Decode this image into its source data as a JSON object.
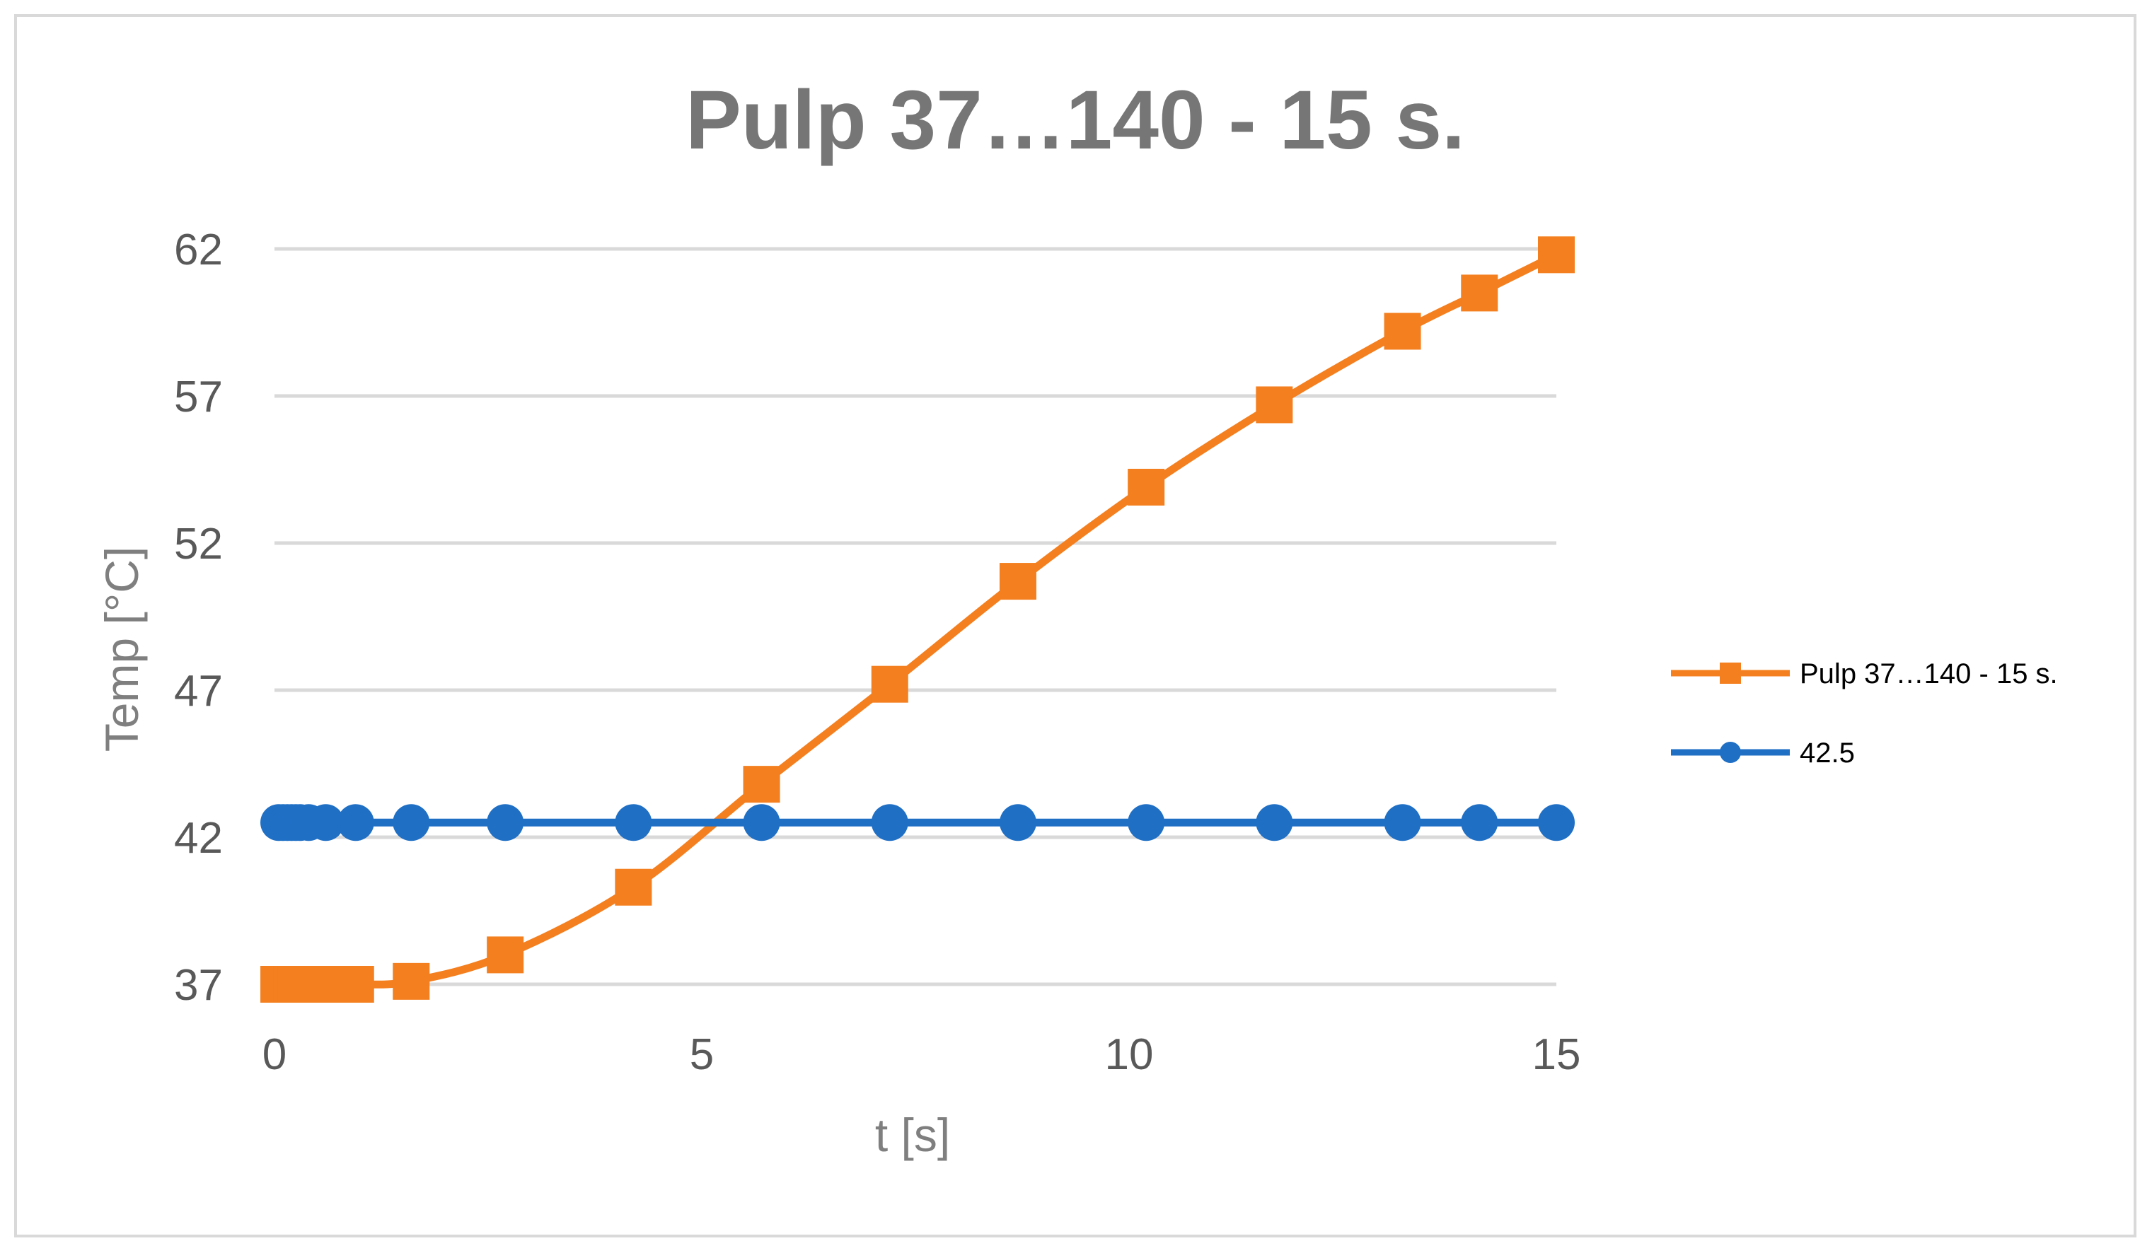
{
  "chart_data": {
    "type": "line",
    "title": "Pulp 37…140 - 15 s.",
    "xlabel": "t [s]",
    "ylabel": "Temp [°C]",
    "xlim": [
      0,
      15
    ],
    "ylim": [
      37,
      62
    ],
    "xticks": [
      0,
      5,
      10,
      15
    ],
    "yticks": [
      37,
      42,
      47,
      52,
      57,
      62
    ],
    "grid": "horizontal",
    "legend_position": "right",
    "series": [
      {
        "name": "Pulp 37…140 - 15 s.",
        "color": "#F47F1F",
        "marker": "square",
        "x": [
          0.05,
          0.1,
          0.15,
          0.2,
          0.25,
          0.3,
          0.4,
          0.6,
          0.95,
          1.6,
          2.7,
          4.2,
          5.7,
          7.2,
          8.7,
          10.2,
          11.7,
          13.2,
          14.1,
          15.0
        ],
        "y": [
          37.0,
          37.0,
          37.0,
          37.0,
          37.0,
          37.0,
          37.0,
          37.0,
          37.0,
          37.1,
          38.0,
          40.3,
          43.8,
          47.2,
          50.7,
          53.9,
          56.7,
          59.2,
          60.5,
          61.8
        ]
      },
      {
        "name": "42.5",
        "color": "#1F6FC5",
        "marker": "circle",
        "x": [
          0.05,
          0.1,
          0.15,
          0.2,
          0.25,
          0.3,
          0.4,
          0.6,
          0.95,
          1.6,
          2.7,
          4.2,
          5.7,
          7.2,
          8.7,
          10.2,
          11.7,
          13.2,
          14.1,
          15.0
        ],
        "y": [
          42.5,
          42.5,
          42.5,
          42.5,
          42.5,
          42.5,
          42.5,
          42.5,
          42.5,
          42.5,
          42.5,
          42.5,
          42.5,
          42.5,
          42.5,
          42.5,
          42.5,
          42.5,
          42.5,
          42.5
        ]
      }
    ]
  }
}
